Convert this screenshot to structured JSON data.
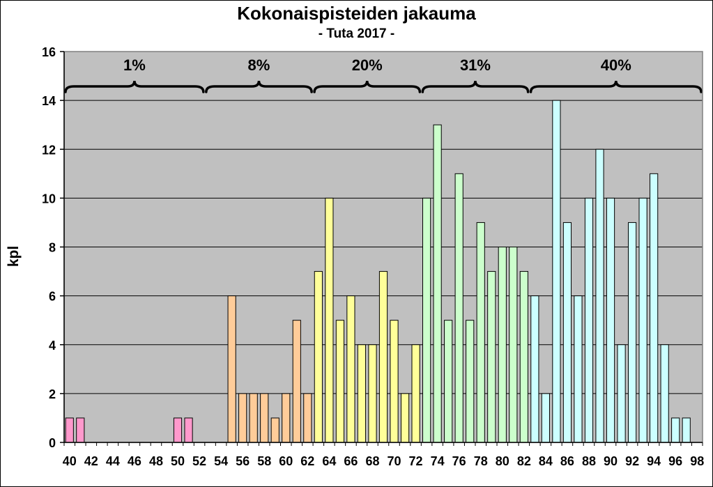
{
  "chart_data": {
    "type": "bar",
    "title": "Kokonaispisteiden jakauma",
    "subtitle": "- Tuta 2017 -",
    "xlabel": "",
    "ylabel": "kpl",
    "ylim": [
      0,
      16
    ],
    "yticks": [
      0,
      2,
      4,
      6,
      8,
      10,
      12,
      14,
      16
    ],
    "xlim": [
      40,
      99
    ],
    "xticks": [
      40,
      42,
      44,
      46,
      48,
      50,
      52,
      54,
      56,
      58,
      60,
      62,
      64,
      66,
      68,
      70,
      72,
      74,
      76,
      78,
      80,
      82,
      84,
      86,
      88,
      90,
      92,
      94,
      96,
      98
    ],
    "grid": "horizontal",
    "background": "#c0c0c0",
    "x": [
      40,
      41,
      42,
      43,
      44,
      45,
      46,
      47,
      48,
      49,
      50,
      51,
      52,
      53,
      54,
      55,
      56,
      57,
      58,
      59,
      60,
      61,
      62,
      63,
      64,
      65,
      66,
      67,
      68,
      69,
      70,
      71,
      72,
      73,
      74,
      75,
      76,
      77,
      78,
      79,
      80,
      81,
      82,
      83,
      84,
      85,
      86,
      87,
      88,
      89,
      90,
      91,
      92,
      93,
      94,
      95,
      96,
      97,
      98
    ],
    "values": [
      1,
      1,
      0,
      0,
      0,
      0,
      0,
      0,
      0,
      0,
      1,
      1,
      0,
      0,
      0,
      6,
      2,
      2,
      2,
      1,
      2,
      5,
      2,
      7,
      10,
      5,
      6,
      4,
      4,
      7,
      5,
      2,
      4,
      10,
      13,
      5,
      11,
      5,
      9,
      7,
      8,
      8,
      7,
      6,
      2,
      14,
      9,
      6,
      10,
      12,
      10,
      4,
      9,
      10,
      11,
      4,
      1,
      1,
      0
    ],
    "groups": [
      {
        "label": "1%",
        "from": 40,
        "to": 52,
        "color": "#ff99cc"
      },
      {
        "label": "8%",
        "from": 53,
        "to": 62,
        "color": "#ffcc99"
      },
      {
        "label": "20%",
        "from": 63,
        "to": 72,
        "color": "#ffff99"
      },
      {
        "label": "31%",
        "from": 73,
        "to": 82,
        "color": "#ccffcc"
      },
      {
        "label": "40%",
        "from": 83,
        "to": 98,
        "color": "#ccffff"
      }
    ]
  }
}
